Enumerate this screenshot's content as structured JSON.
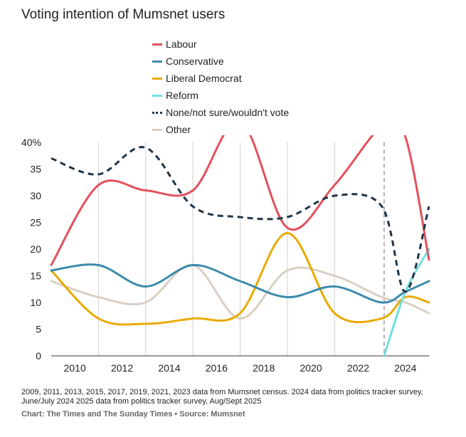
{
  "title": "Voting intention of Mumsnet users",
  "footnote": "2009, 2011, 2013, 2015, 2017, 2019, 2021, 2023 data from Mumsnet census. 2024 data from politics tracker survey, June/July 2024 2025 data from politics tracker survey, Aug/Sept 2025",
  "credit": "Chart: The Times and The Sunday Times • Source: Mumsnet",
  "chart_data": {
    "type": "line",
    "title": "Voting intention of Mumsnet users",
    "xlabel": "",
    "ylabel": "",
    "xlim": [
      2009,
      2025
    ],
    "ylim": [
      0,
      40
    ],
    "x_ticks": [
      2010,
      2012,
      2014,
      2016,
      2018,
      2020,
      2022,
      2024
    ],
    "x_tick_labels": [
      "2010",
      "2012",
      "2014",
      "2016",
      "2018",
      "2020",
      "2022",
      "2024"
    ],
    "y_ticks": [
      0,
      5,
      10,
      15,
      20,
      25,
      30,
      35,
      40
    ],
    "y_tick_labels": [
      "0",
      "5",
      "10",
      "15",
      "20",
      "25",
      "30",
      "35",
      "40%"
    ],
    "vertical_gridlines_at": [
      2011,
      2013,
      2015,
      2017,
      2019,
      2021
    ],
    "reference_line": {
      "x": 2023.1,
      "style": "dashed"
    },
    "legend_position": "top",
    "series": [
      {
        "name": "Labour",
        "color": "#e4505b",
        "dash": false,
        "x": [
          2009,
          2011,
          2013,
          2015,
          2017,
          2019,
          2021,
          2023,
          2024,
          2025
        ],
        "y": [
          17,
          32,
          31,
          31,
          44,
          24,
          32,
          43,
          41,
          18
        ]
      },
      {
        "name": "Conservative",
        "color": "#3b8bab",
        "dash": false,
        "x": [
          2009,
          2011,
          2013,
          2015,
          2017,
          2019,
          2021,
          2023,
          2024,
          2025
        ],
        "y": [
          16,
          17,
          13,
          17,
          14,
          11,
          13,
          10,
          12,
          14
        ]
      },
      {
        "name": "Liberal Democrat",
        "color": "#e8ab00",
        "dash": false,
        "x": [
          2009,
          2011,
          2013,
          2015,
          2017,
          2019,
          2021,
          2023,
          2024,
          2025
        ],
        "y": [
          16,
          7,
          6,
          7,
          8,
          23,
          8,
          7,
          11,
          10
        ]
      },
      {
        "name": "Reform",
        "color": "#6ee0e0",
        "dash": false,
        "x": [
          2023.1,
          2024,
          2025
        ],
        "y": [
          0,
          12,
          20
        ]
      },
      {
        "name": "None/not sure/wouldn't vote",
        "color": "#1f3446",
        "dash": true,
        "x": [
          2009,
          2011,
          2013,
          2015,
          2017,
          2019,
          2021,
          2023,
          2024,
          2025
        ],
        "y": [
          37,
          34,
          39,
          28,
          26,
          26,
          30,
          28,
          12,
          28
        ]
      },
      {
        "name": "Other",
        "color": "#d9cfc3",
        "dash": false,
        "x": [
          2009,
          2011,
          2013,
          2015,
          2017,
          2019,
          2021,
          2023,
          2024,
          2025
        ],
        "y": [
          14,
          11,
          10,
          17,
          7,
          16,
          15,
          11,
          10,
          8
        ]
      }
    ]
  }
}
